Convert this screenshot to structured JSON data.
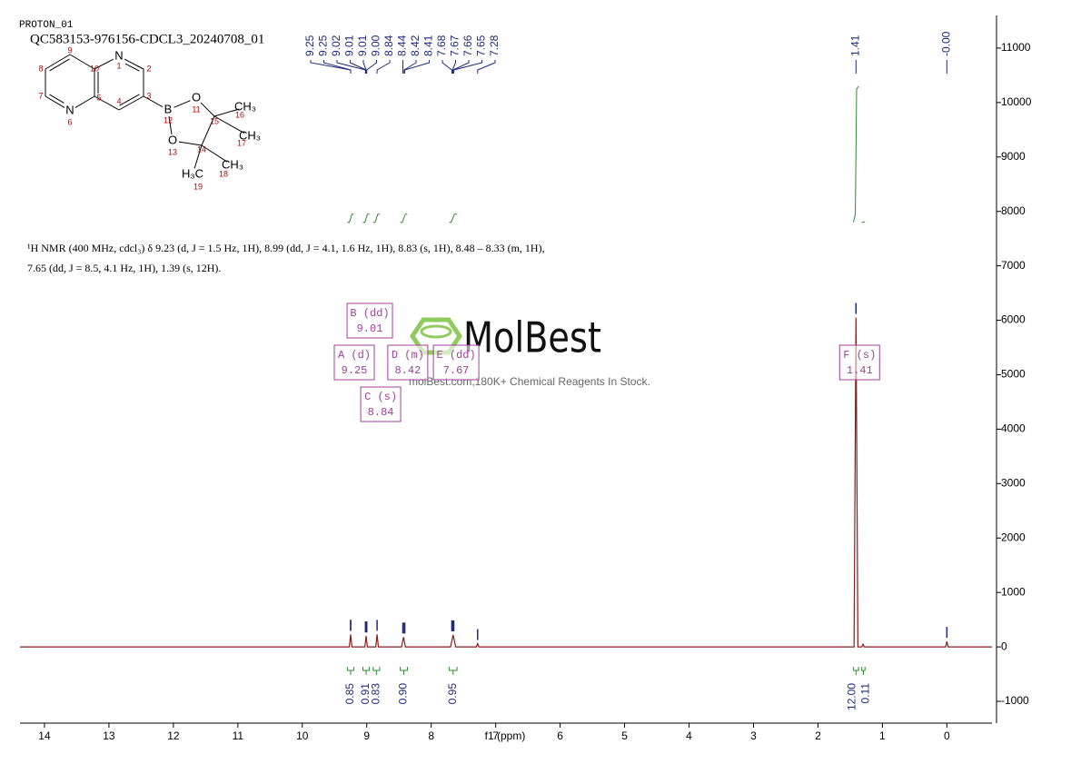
{
  "chart_data": {
    "type": "line",
    "title": "PROTON_01",
    "subtitle": "QC583153-976156-CDCL3_20240708_01",
    "description": "¹H NMR (400 MHz, cdcl₃) δ 9.23 (d, J = 1.5 Hz, 1H), 8.99 (dd, J = 4.1, 1.6 Hz, 1H), 8.83 (s, 1H), 8.48 – 8.33 (m, 1H), 7.65 (dd, J = 8.5, 4.1 Hz, 1H), 1.39 (s, 12H).",
    "xlabel": "f1 (ppm)",
    "xlim": [
      14.38,
      -0.7
    ],
    "xticks": [
      14,
      13,
      12,
      11,
      10,
      9,
      8,
      7,
      6,
      5,
      4,
      3,
      2,
      1,
      0
    ],
    "ylim": [
      -1400,
      11600
    ],
    "yticks": [
      -1000,
      0,
      1000,
      2000,
      3000,
      4000,
      5000,
      6000,
      7000,
      8000,
      9000,
      10000,
      11000
    ],
    "spectrum": {
      "color": "#8b1a1a",
      "x": [
        14.38,
        9.27,
        9.25,
        9.23,
        9.03,
        9.01,
        8.99,
        8.86,
        8.84,
        8.82,
        8.46,
        8.43,
        8.4,
        7.7,
        7.66,
        7.62,
        7.3,
        7.28,
        7.26,
        1.44,
        1.41,
        1.38,
        1.32,
        1.3,
        1.28,
        0.02,
        0,
        -0.02,
        -0.7
      ],
      "values": [
        0,
        0,
        230,
        0,
        0,
        200,
        0,
        0,
        230,
        0,
        0,
        180,
        0,
        0,
        220,
        0,
        0,
        60,
        0,
        0,
        6050,
        0,
        0,
        50,
        0,
        0,
        100,
        0,
        0
      ]
    },
    "integral_color": "#2e8b2e",
    "integral_curves": [
      {
        "x": [
          9.3,
          9.27,
          9.23,
          9.2
        ],
        "values": [
          7800,
          7800,
          7950,
          7950
        ]
      },
      {
        "x": [
          9.06,
          9.03,
          8.99,
          8.96
        ],
        "values": [
          7800,
          7800,
          7950,
          7950
        ]
      },
      {
        "x": [
          8.9,
          8.87,
          8.83,
          8.8
        ],
        "values": [
          7800,
          7800,
          7950,
          7950
        ]
      },
      {
        "x": [
          8.48,
          8.45,
          8.4,
          8.37
        ],
        "values": [
          7800,
          7800,
          7950,
          7950
        ]
      },
      {
        "x": [
          7.72,
          7.69,
          7.64,
          7.6
        ],
        "values": [
          7800,
          7800,
          7950,
          7950
        ]
      },
      {
        "x": [
          1.45,
          1.42,
          1.4,
          1.37
        ],
        "values": [
          7800,
          7950,
          10250,
          10300
        ]
      },
      {
        "x": [
          1.32,
          1.3,
          1.28,
          1.27
        ],
        "values": [
          7800,
          7800,
          7810,
          7810
        ]
      }
    ],
    "peak_color": "#1f2a7a",
    "peak_picks": {
      "values": [
        9.25,
        9.25,
        9.02,
        9.01,
        9.01,
        9.0,
        8.84,
        8.44,
        8.42,
        8.41,
        7.68,
        7.67,
        7.66,
        7.65,
        7.28,
        1.41,
        0
      ],
      "value_labels": [
        "9.25",
        "9.25",
        "9.02",
        "9.01",
        "9.01",
        "9.00",
        "8.84",
        "8.44",
        "8.42",
        "8.41",
        "7.68",
        "7.67",
        "7.66",
        "7.65",
        "7.28",
        "1.41",
        "-0.00"
      ]
    },
    "integrals": {
      "ranges": [
        [
          9.3,
          9.2
        ],
        [
          9.06,
          8.96
        ],
        [
          8.9,
          8.8
        ],
        [
          8.48,
          8.37
        ],
        [
          7.72,
          7.6
        ],
        [
          1.45,
          1.37
        ],
        [
          1.32,
          1.27
        ]
      ],
      "values": [
        0.85,
        0.91,
        0.83,
        0.9,
        0.95,
        12.0,
        0.11
      ],
      "value_labels": [
        "0.85",
        "0.91",
        "0.83",
        "0.90",
        "0.95",
        "12.00",
        "0.11"
      ]
    },
    "multiplet_color": "#a040a0",
    "multiplets": [
      {
        "label": "A (d)",
        "shift": 9.25
      },
      {
        "label": "B (dd)",
        "shift": 9.01
      },
      {
        "label": "C (s)",
        "shift": 8.84
      },
      {
        "label": "D (m)",
        "shift": 8.42
      },
      {
        "label": "E (dd)",
        "shift": 7.67
      },
      {
        "label": "F (s)",
        "shift": 1.41
      }
    ],
    "watermark": {
      "logo": "MolBest",
      "tagline": "molBest.com,180K+ Chemical Reagents In Stock."
    },
    "structure": {
      "atoms": [
        {
          "number": 1,
          "symbol": "N"
        },
        {
          "number": 2
        },
        {
          "number": 3
        },
        {
          "number": 4
        },
        {
          "number": 5
        },
        {
          "number": 6,
          "symbol": "N"
        },
        {
          "number": 7
        },
        {
          "number": 8
        },
        {
          "number": 9
        },
        {
          "number": 10
        },
        {
          "number": 12,
          "symbol": "B"
        },
        {
          "number": 11,
          "symbol": "O"
        },
        {
          "number": 13,
          "symbol": "O"
        },
        {
          "number": 15
        },
        {
          "number": 14
        },
        {
          "number": 16,
          "symbol": "CH₃"
        },
        {
          "number": 17,
          "symbol": "CH₃"
        },
        {
          "number": 18,
          "symbol": "CH₃"
        },
        {
          "number": 19,
          "symbol": "H₃C"
        }
      ]
    }
  }
}
